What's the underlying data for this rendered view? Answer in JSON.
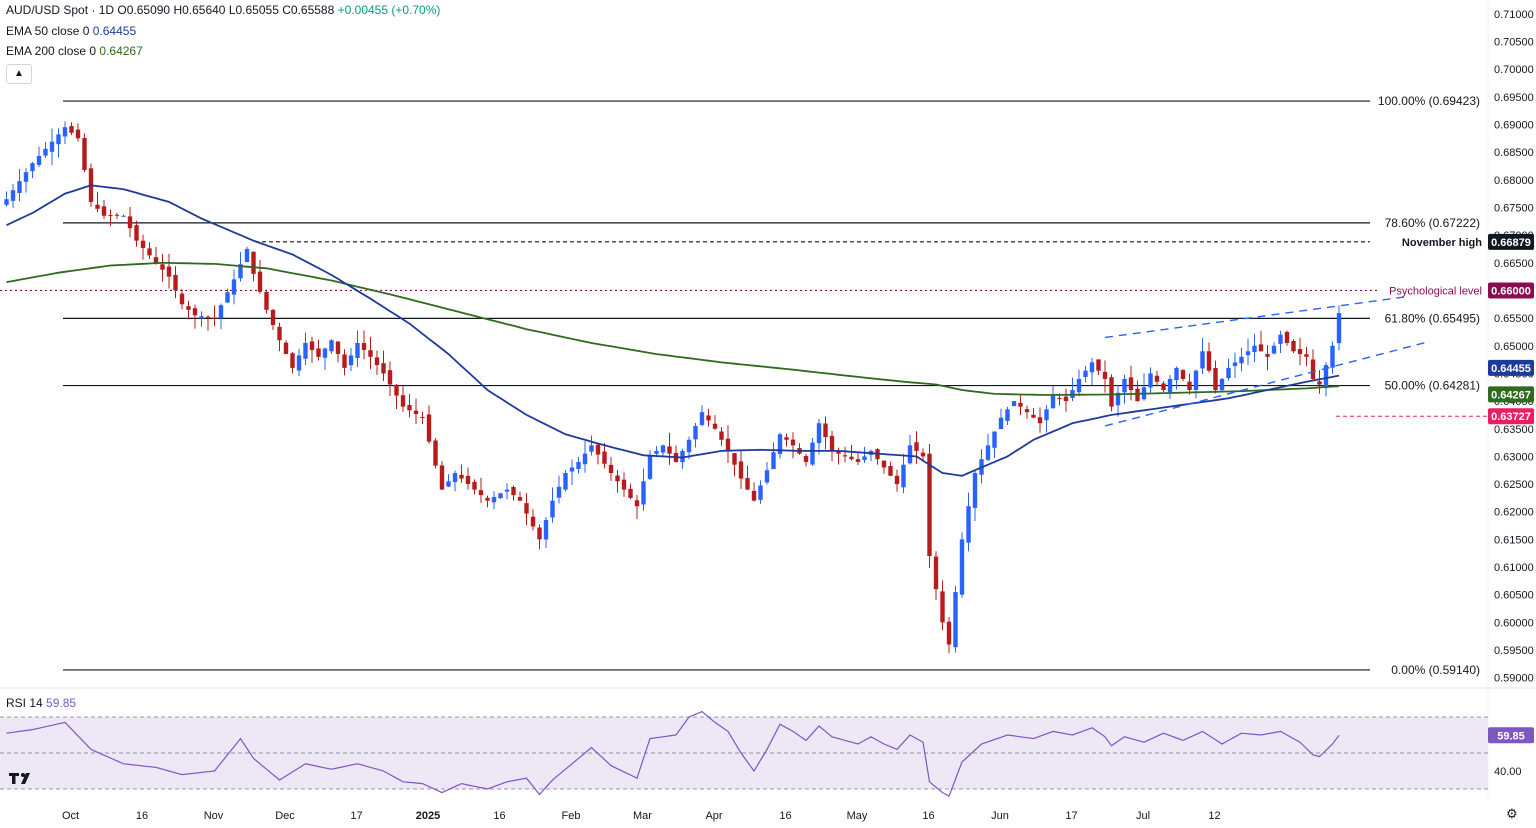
{
  "header": {
    "symbol": "AUD/USD Spot · 1D",
    "ohlc": {
      "o": "O0.65090",
      "h": "H0.65640",
      "l": "L0.65055",
      "c": "C0.65588",
      "change": "+0.00455 (+0.70%)"
    },
    "ema50_label": "EMA 50 close 0",
    "ema50_value": "0.64455",
    "ema200_label": "EMA 200 close 0",
    "ema200_value": "0.64267",
    "rsi_label": "RSI 14",
    "rsi_value": "59.85",
    "collapse_icon": "chevron-up-icon",
    "logo": "tradingview-logo",
    "settings_icon": "gear-icon"
  },
  "colors": {
    "up": "#2962ff",
    "down": "#b71c1c",
    "ema50": "#1e3a9a",
    "ema200": "#2e6b1f",
    "psych": "#880e4f",
    "low_marker": "#e91e63",
    "rsi": "#7e57c2",
    "rsi_band": "#ede7f6"
  },
  "chart_data": [
    {
      "type": "candlestick",
      "title": "AUD/USD Spot · 1D",
      "xlabel": "",
      "ylabel": "",
      "ylim": [
        0.5885,
        0.7125
      ],
      "x_ticks": [
        "Oct",
        "16",
        "Nov",
        "Dec",
        "17",
        "2025",
        "16",
        "Feb",
        "Mar",
        "Apr",
        "16",
        "May",
        "16",
        "Jun",
        "17",
        "Jul",
        "12"
      ],
      "y_ticks": [
        "0.71000",
        "0.70500",
        "0.70000",
        "0.69500",
        "0.69000",
        "0.68500",
        "0.68000",
        "0.67500",
        "0.67000",
        "0.66500",
        "0.66000",
        "0.65500",
        "0.65000",
        "0.64500",
        "0.64000",
        "0.63500",
        "0.63000",
        "0.62500",
        "0.62000",
        "0.61500",
        "0.61000",
        "0.60500",
        "0.60000",
        "0.59500",
        "0.59000"
      ],
      "y_ticks_values": [
        0.71,
        0.705,
        0.7,
        0.695,
        0.69,
        0.685,
        0.68,
        0.675,
        0.67,
        0.665,
        0.66,
        0.655,
        0.65,
        0.645,
        0.64,
        0.635,
        0.63,
        0.625,
        0.62,
        0.615,
        0.61,
        0.605,
        0.6,
        0.595,
        0.59
      ],
      "grid": false,
      "legend": "top-left",
      "levels": [
        {
          "label": "100.00% (0.69423)",
          "value": 0.69423,
          "style": "solid"
        },
        {
          "label": "78.60% (0.67222)",
          "value": 0.67222,
          "style": "solid"
        },
        {
          "label": "November high",
          "badge": "0.66879",
          "value": 0.66879,
          "style": "dashed"
        },
        {
          "label": "Psychological level",
          "badge": "0.66000",
          "value": 0.66,
          "style": "dotted"
        },
        {
          "label": "61.80% (0.65495)",
          "value": 0.65495,
          "style": "solid"
        },
        {
          "label": "50.00% (0.64281)",
          "value": 0.64281,
          "style": "solid"
        },
        {
          "label": "",
          "badge": "0.63727",
          "value": 0.63727,
          "style": "dashed-short"
        },
        {
          "label": "0.00% (0.59140)",
          "value": 0.5914,
          "style": "solid"
        }
      ],
      "ema_badges": [
        {
          "name": "EMA 50",
          "value": "0.64455"
        },
        {
          "name": "EMA 200",
          "value": "0.64267"
        }
      ],
      "keypoints": [
        [
          0,
          0.6765
        ],
        [
          4,
          0.683
        ],
        [
          9,
          0.6895
        ],
        [
          11,
          0.6875
        ],
        [
          13,
          0.676
        ],
        [
          15,
          0.6735
        ],
        [
          18,
          0.6735
        ],
        [
          20,
          0.669
        ],
        [
          23,
          0.665
        ],
        [
          25,
          0.6625
        ],
        [
          27,
          0.6575
        ],
        [
          29,
          0.6555
        ],
        [
          32,
          0.655
        ],
        [
          35,
          0.662
        ],
        [
          37,
          0.6675
        ],
        [
          38,
          0.663
        ],
        [
          40,
          0.6565
        ],
        [
          42,
          0.651
        ],
        [
          44,
          0.646
        ],
        [
          46,
          0.6505
        ],
        [
          48,
          0.648
        ],
        [
          50,
          0.651
        ],
        [
          52,
          0.646
        ],
        [
          54,
          0.6505
        ],
        [
          56,
          0.648
        ],
        [
          58,
          0.645
        ],
        [
          61,
          0.639
        ],
        [
          64,
          0.637
        ],
        [
          67,
          0.624
        ],
        [
          69,
          0.627
        ],
        [
          71,
          0.625
        ],
        [
          74,
          0.622
        ],
        [
          77,
          0.624
        ],
        [
          79,
          0.622
        ],
        [
          82,
          0.615
        ],
        [
          84,
          0.622
        ],
        [
          86,
          0.627
        ],
        [
          88,
          0.629
        ],
        [
          90,
          0.632
        ],
        [
          93,
          0.627
        ],
        [
          95,
          0.624
        ],
        [
          97,
          0.621
        ],
        [
          99,
          0.63
        ],
        [
          101,
          0.632
        ],
        [
          103,
          0.629
        ],
        [
          105,
          0.633
        ],
        [
          107,
          0.638
        ],
        [
          109,
          0.635
        ],
        [
          111,
          0.631
        ],
        [
          113,
          0.626
        ],
        [
          115,
          0.622
        ],
        [
          117,
          0.6275
        ],
        [
          119,
          0.634
        ],
        [
          121,
          0.632
        ],
        [
          123,
          0.629
        ],
        [
          125,
          0.636
        ],
        [
          127,
          0.631
        ],
        [
          129,
          0.63
        ],
        [
          131,
          0.629
        ],
        [
          133,
          0.631
        ],
        [
          135,
          0.628
        ],
        [
          137,
          0.625
        ],
        [
          139,
          0.632
        ],
        [
          141,
          0.63
        ],
        [
          142,
          0.612
        ],
        [
          144,
          0.6
        ],
        [
          145,
          0.596
        ],
        [
          147,
          0.615
        ],
        [
          149,
          0.627
        ],
        [
          151,
          0.632
        ],
        [
          153,
          0.637
        ],
        [
          155,
          0.64
        ],
        [
          157,
          0.638
        ],
        [
          159,
          0.636
        ],
        [
          161,
          0.641
        ],
        [
          163,
          0.64
        ],
        [
          165,
          0.644
        ],
        [
          167,
          0.647
        ],
        [
          169,
          0.644
        ],
        [
          170,
          0.639
        ],
        [
          172,
          0.644
        ],
        [
          174,
          0.64
        ],
        [
          176,
          0.645
        ],
        [
          178,
          0.642
        ],
        [
          180,
          0.646
        ],
        [
          182,
          0.642
        ],
        [
          184,
          0.649
        ],
        [
          186,
          0.642
        ],
        [
          188,
          0.646
        ],
        [
          190,
          0.648
        ],
        [
          192,
          0.65
        ],
        [
          194,
          0.648
        ],
        [
          196,
          0.652
        ],
        [
          198,
          0.649
        ],
        [
          200,
          0.648
        ],
        [
          201,
          0.644
        ],
        [
          202,
          0.643
        ],
        [
          204,
          0.65
        ],
        [
          205,
          0.6559
        ]
      ],
      "candles_count": 206,
      "ema50_keypoints": [
        [
          0,
          0.6718
        ],
        [
          4,
          0.674
        ],
        [
          9,
          0.6775
        ],
        [
          13,
          0.679
        ],
        [
          18,
          0.6783
        ],
        [
          25,
          0.676
        ],
        [
          30,
          0.673
        ],
        [
          38,
          0.669
        ],
        [
          44,
          0.6665
        ],
        [
          50,
          0.6628
        ],
        [
          56,
          0.6585
        ],
        [
          62,
          0.654
        ],
        [
          68,
          0.6485
        ],
        [
          74,
          0.642
        ],
        [
          80,
          0.6375
        ],
        [
          86,
          0.634
        ],
        [
          92,
          0.632
        ],
        [
          98,
          0.6302
        ],
        [
          104,
          0.6298
        ],
        [
          110,
          0.631
        ],
        [
          116,
          0.6312
        ],
        [
          122,
          0.631
        ],
        [
          128,
          0.631
        ],
        [
          134,
          0.6305
        ],
        [
          140,
          0.63
        ],
        [
          144,
          0.627
        ],
        [
          147,
          0.6265
        ],
        [
          150,
          0.628
        ],
        [
          154,
          0.63
        ],
        [
          158,
          0.633
        ],
        [
          164,
          0.636
        ],
        [
          170,
          0.6375
        ],
        [
          176,
          0.6385
        ],
        [
          182,
          0.6395
        ],
        [
          188,
          0.6405
        ],
        [
          194,
          0.642
        ],
        [
          200,
          0.6435
        ],
        [
          205,
          0.6446
        ]
      ],
      "ema200_keypoints": [
        [
          0,
          0.6615
        ],
        [
          8,
          0.6632
        ],
        [
          16,
          0.6645
        ],
        [
          24,
          0.665
        ],
        [
          32,
          0.6648
        ],
        [
          40,
          0.664
        ],
        [
          50,
          0.6618
        ],
        [
          60,
          0.659
        ],
        [
          70,
          0.656
        ],
        [
          80,
          0.653
        ],
        [
          90,
          0.6505
        ],
        [
          100,
          0.6485
        ],
        [
          110,
          0.647
        ],
        [
          120,
          0.6458
        ],
        [
          130,
          0.6445
        ],
        [
          138,
          0.6435
        ],
        [
          143,
          0.643
        ],
        [
          147,
          0.642
        ],
        [
          152,
          0.6413
        ],
        [
          160,
          0.6411
        ],
        [
          170,
          0.6412
        ],
        [
          180,
          0.6415
        ],
        [
          190,
          0.6418
        ],
        [
          200,
          0.6423
        ],
        [
          205,
          0.6427
        ]
      ],
      "channel_lines": [
        {
          "from": [
            169,
            0.6515
          ],
          "to": [
            215,
            0.6588
          ]
        },
        {
          "from": [
            169,
            0.6355
          ],
          "to": [
            219,
            0.6508
          ]
        }
      ],
      "x_tick_positions": [
        0,
        11,
        22,
        33,
        44,
        55,
        66,
        77,
        88,
        99,
        110,
        121,
        132,
        143,
        154,
        165,
        176
      ]
    },
    {
      "type": "line",
      "title": "RSI 14",
      "xlabel": "",
      "ylabel": "",
      "ylim": [
        25,
        85
      ],
      "y_ticks": [
        "40.00"
      ],
      "y_ticks_values": [
        40
      ],
      "band": [
        30,
        70
      ],
      "midline": 50,
      "value_badge": "59.85",
      "keypoints": [
        [
          0,
          61
        ],
        [
          4,
          63
        ],
        [
          9,
          67
        ],
        [
          13,
          52
        ],
        [
          18,
          44
        ],
        [
          23,
          42
        ],
        [
          27,
          38
        ],
        [
          32,
          40
        ],
        [
          36,
          58
        ],
        [
          38,
          47
        ],
        [
          42,
          35
        ],
        [
          46,
          44
        ],
        [
          50,
          41
        ],
        [
          54,
          44
        ],
        [
          58,
          40
        ],
        [
          61,
          34
        ],
        [
          64,
          33
        ],
        [
          67,
          28
        ],
        [
          70,
          33
        ],
        [
          74,
          30
        ],
        [
          77,
          34
        ],
        [
          80,
          36
        ],
        [
          82,
          27
        ],
        [
          84,
          35
        ],
        [
          88,
          47
        ],
        [
          90,
          53
        ],
        [
          93,
          43
        ],
        [
          97,
          36
        ],
        [
          99,
          58
        ],
        [
          103,
          60
        ],
        [
          105,
          70
        ],
        [
          107,
          73
        ],
        [
          109,
          67
        ],
        [
          111,
          62
        ],
        [
          113,
          50
        ],
        [
          115,
          40
        ],
        [
          117,
          52
        ],
        [
          119,
          66
        ],
        [
          121,
          62
        ],
        [
          123,
          57
        ],
        [
          125,
          65
        ],
        [
          127,
          59
        ],
        [
          129,
          57
        ],
        [
          131,
          55
        ],
        [
          133,
          59
        ],
        [
          135,
          55
        ],
        [
          137,
          52
        ],
        [
          139,
          60
        ],
        [
          141,
          56
        ],
        [
          142,
          34
        ],
        [
          144,
          28
        ],
        [
          145,
          26
        ],
        [
          147,
          45
        ],
        [
          150,
          55
        ],
        [
          154,
          60
        ],
        [
          158,
          58
        ],
        [
          161,
          62
        ],
        [
          164,
          60
        ],
        [
          167,
          64
        ],
        [
          169,
          59
        ],
        [
          170,
          54
        ],
        [
          172,
          59
        ],
        [
          175,
          56
        ],
        [
          178,
          61
        ],
        [
          181,
          57
        ],
        [
          184,
          62
        ],
        [
          187,
          55
        ],
        [
          190,
          61
        ],
        [
          193,
          60
        ],
        [
          196,
          62
        ],
        [
          199,
          56
        ],
        [
          201,
          49
        ],
        [
          202,
          48
        ],
        [
          204,
          55
        ],
        [
          205,
          59.85
        ]
      ]
    }
  ]
}
